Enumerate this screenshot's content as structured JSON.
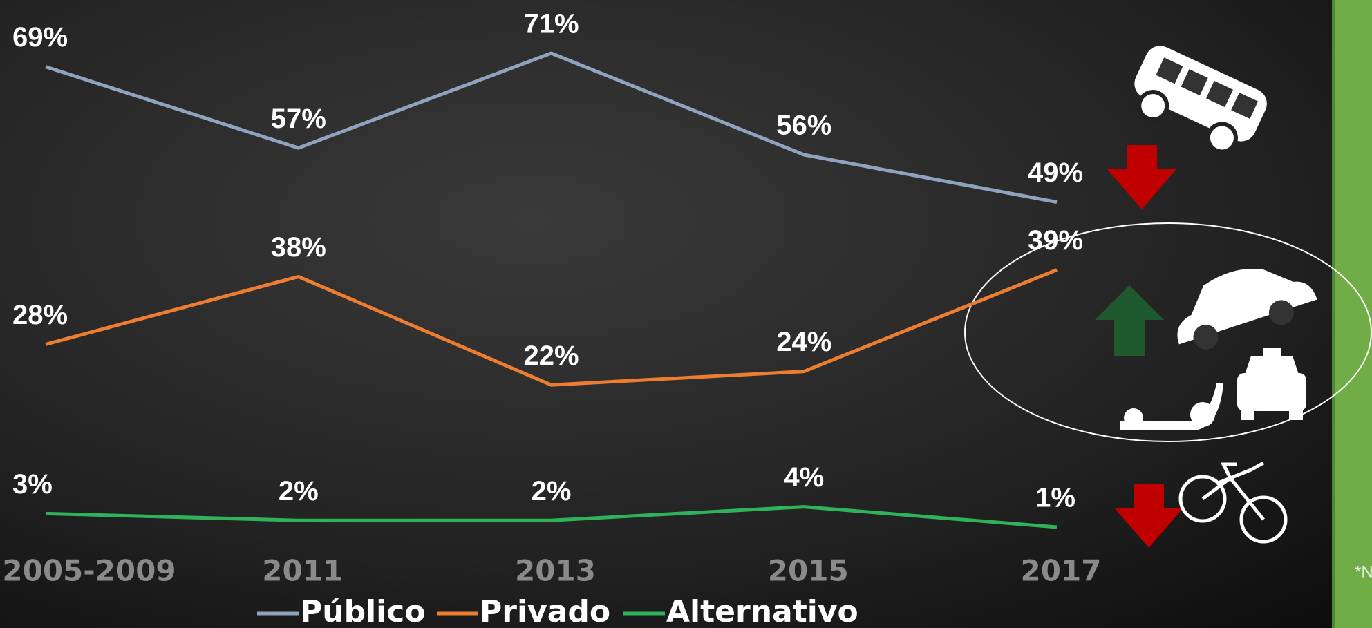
{
  "chart_data": {
    "type": "line",
    "categories": [
      "2005-2009",
      "2011",
      "2013",
      "2015",
      "2017"
    ],
    "series": [
      {
        "name": "Público",
        "color": "#8fa3bf",
        "values": [
          69,
          57,
          71,
          56,
          49
        ],
        "value_labels": [
          "69%",
          "57%",
          "71%",
          "56%",
          "49%"
        ]
      },
      {
        "name": "Privado",
        "color": "#ed7d31",
        "values": [
          28,
          38,
          22,
          24,
          39
        ],
        "value_labels": [
          "28%",
          "38%",
          "22%",
          "24%",
          "39%"
        ]
      },
      {
        "name": "Alternativo",
        "color": "#2fb35a",
        "values": [
          3,
          2,
          2,
          4,
          1
        ],
        "value_labels": [
          "3%",
          "2%",
          "2%",
          "4%",
          "1%"
        ]
      }
    ],
    "side_note": "*N"
  }
}
